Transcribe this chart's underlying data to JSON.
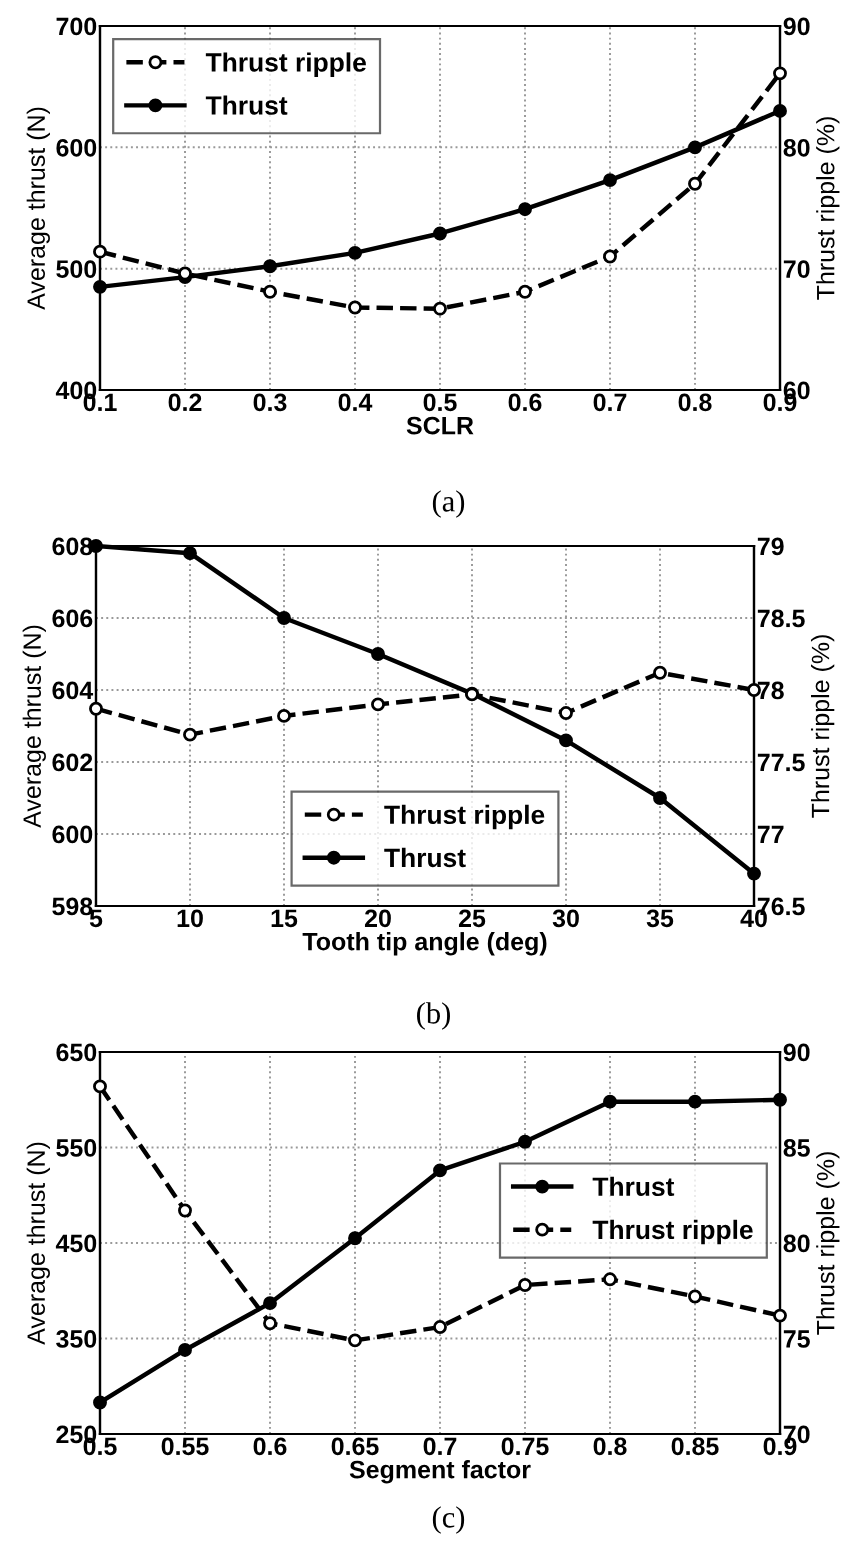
{
  "chart_data": [
    {
      "type": "line",
      "xlabel": "SCLR",
      "ylabel": "Average thrust (N)",
      "y2label": "Thrust ripple (%)",
      "annotations": [
        "(a)"
      ],
      "x": [
        0.1,
        0.2,
        0.3,
        0.4,
        0.5,
        0.6,
        0.7,
        0.8,
        0.9
      ],
      "xlim": [
        0.1,
        0.9
      ],
      "xticks": [
        0.1,
        0.2,
        0.3,
        0.4,
        0.5,
        0.6,
        0.7,
        0.8,
        0.9
      ],
      "ylim": [
        400,
        700
      ],
      "yticks": [
        400,
        500,
        600,
        700
      ],
      "y2lim": [
        60,
        90
      ],
      "y2ticks": [
        60,
        70,
        80,
        90
      ],
      "grid": true,
      "legend": "top left",
      "marker": "circle",
      "series": [
        {
          "name": "Thrust ripple",
          "color": "#000000",
          "axis": "y2",
          "line_style": "dashed",
          "values": [
            71.4,
            69.6,
            68.1,
            66.8,
            66.7,
            68.1,
            71.0,
            77.0,
            86.1
          ]
        },
        {
          "name": "Thrust",
          "color": "#000000",
          "line_style": "solid",
          "values": [
            485,
            493,
            502,
            513,
            529,
            549,
            573,
            600,
            630
          ]
        }
      ]
    },
    {
      "type": "line",
      "xlabel": "Tooth tip angle (deg)",
      "ylabel": "Average thrust (N)",
      "y2label": "Thrust ripple (%)",
      "annotations": [
        "(b)"
      ],
      "x": [
        5,
        10,
        15,
        20,
        25,
        30,
        35,
        40
      ],
      "xlim": [
        5,
        40
      ],
      "xticks": [
        5,
        10,
        15,
        20,
        25,
        30,
        35,
        40
      ],
      "ylim": [
        598,
        608
      ],
      "yticks": [
        598,
        600,
        602,
        604,
        606,
        608
      ],
      "y2lim": [
        76.5,
        79
      ],
      "y2ticks": [
        76.5,
        77,
        77.5,
        78,
        78.5,
        79
      ],
      "grid": true,
      "legend": "bottom",
      "marker": "circle",
      "series": [
        {
          "name": "Thrust ripple",
          "color": "#000000",
          "axis": "y2",
          "line_style": "dashed",
          "values": [
            77.87,
            77.69,
            77.82,
            77.9,
            77.97,
            77.84,
            78.12,
            78.0
          ]
        },
        {
          "name": "Thrust",
          "color": "#000000",
          "line_style": "solid",
          "values": [
            608.0,
            607.8,
            606.0,
            605.0,
            603.9,
            602.6,
            601.0,
            598.9
          ]
        }
      ]
    },
    {
      "type": "line",
      "xlabel": "Segment factor",
      "ylabel": "Average thrust (N)",
      "y2label": "Thrust ripple (%)",
      "annotations": [
        "(c)"
      ],
      "x": [
        0.5,
        0.55,
        0.6,
        0.65,
        0.7,
        0.75,
        0.8,
        0.85,
        0.9
      ],
      "xlim": [
        0.5,
        0.9
      ],
      "xticks": [
        0.5,
        0.55,
        0.6,
        0.65,
        0.7,
        0.75,
        0.8,
        0.85,
        0.9
      ],
      "ylim": [
        250,
        650
      ],
      "yticks": [
        250,
        350,
        450,
        550,
        650
      ],
      "y2lim": [
        70,
        90
      ],
      "y2ticks": [
        70,
        75,
        80,
        85,
        90
      ],
      "grid": true,
      "legend": "right",
      "marker": "circle",
      "series": [
        {
          "name": "Thrust",
          "color": "#000000",
          "line_style": "solid",
          "values": [
            283,
            338,
            387,
            455,
            526,
            556,
            598,
            598,
            600
          ]
        },
        {
          "name": "Thrust ripple",
          "color": "#000000",
          "axis": "y2",
          "line_style": "dashed",
          "values": [
            88.2,
            81.7,
            75.8,
            74.9,
            75.6,
            77.8,
            78.1,
            77.2,
            76.2
          ]
        }
      ]
    }
  ]
}
